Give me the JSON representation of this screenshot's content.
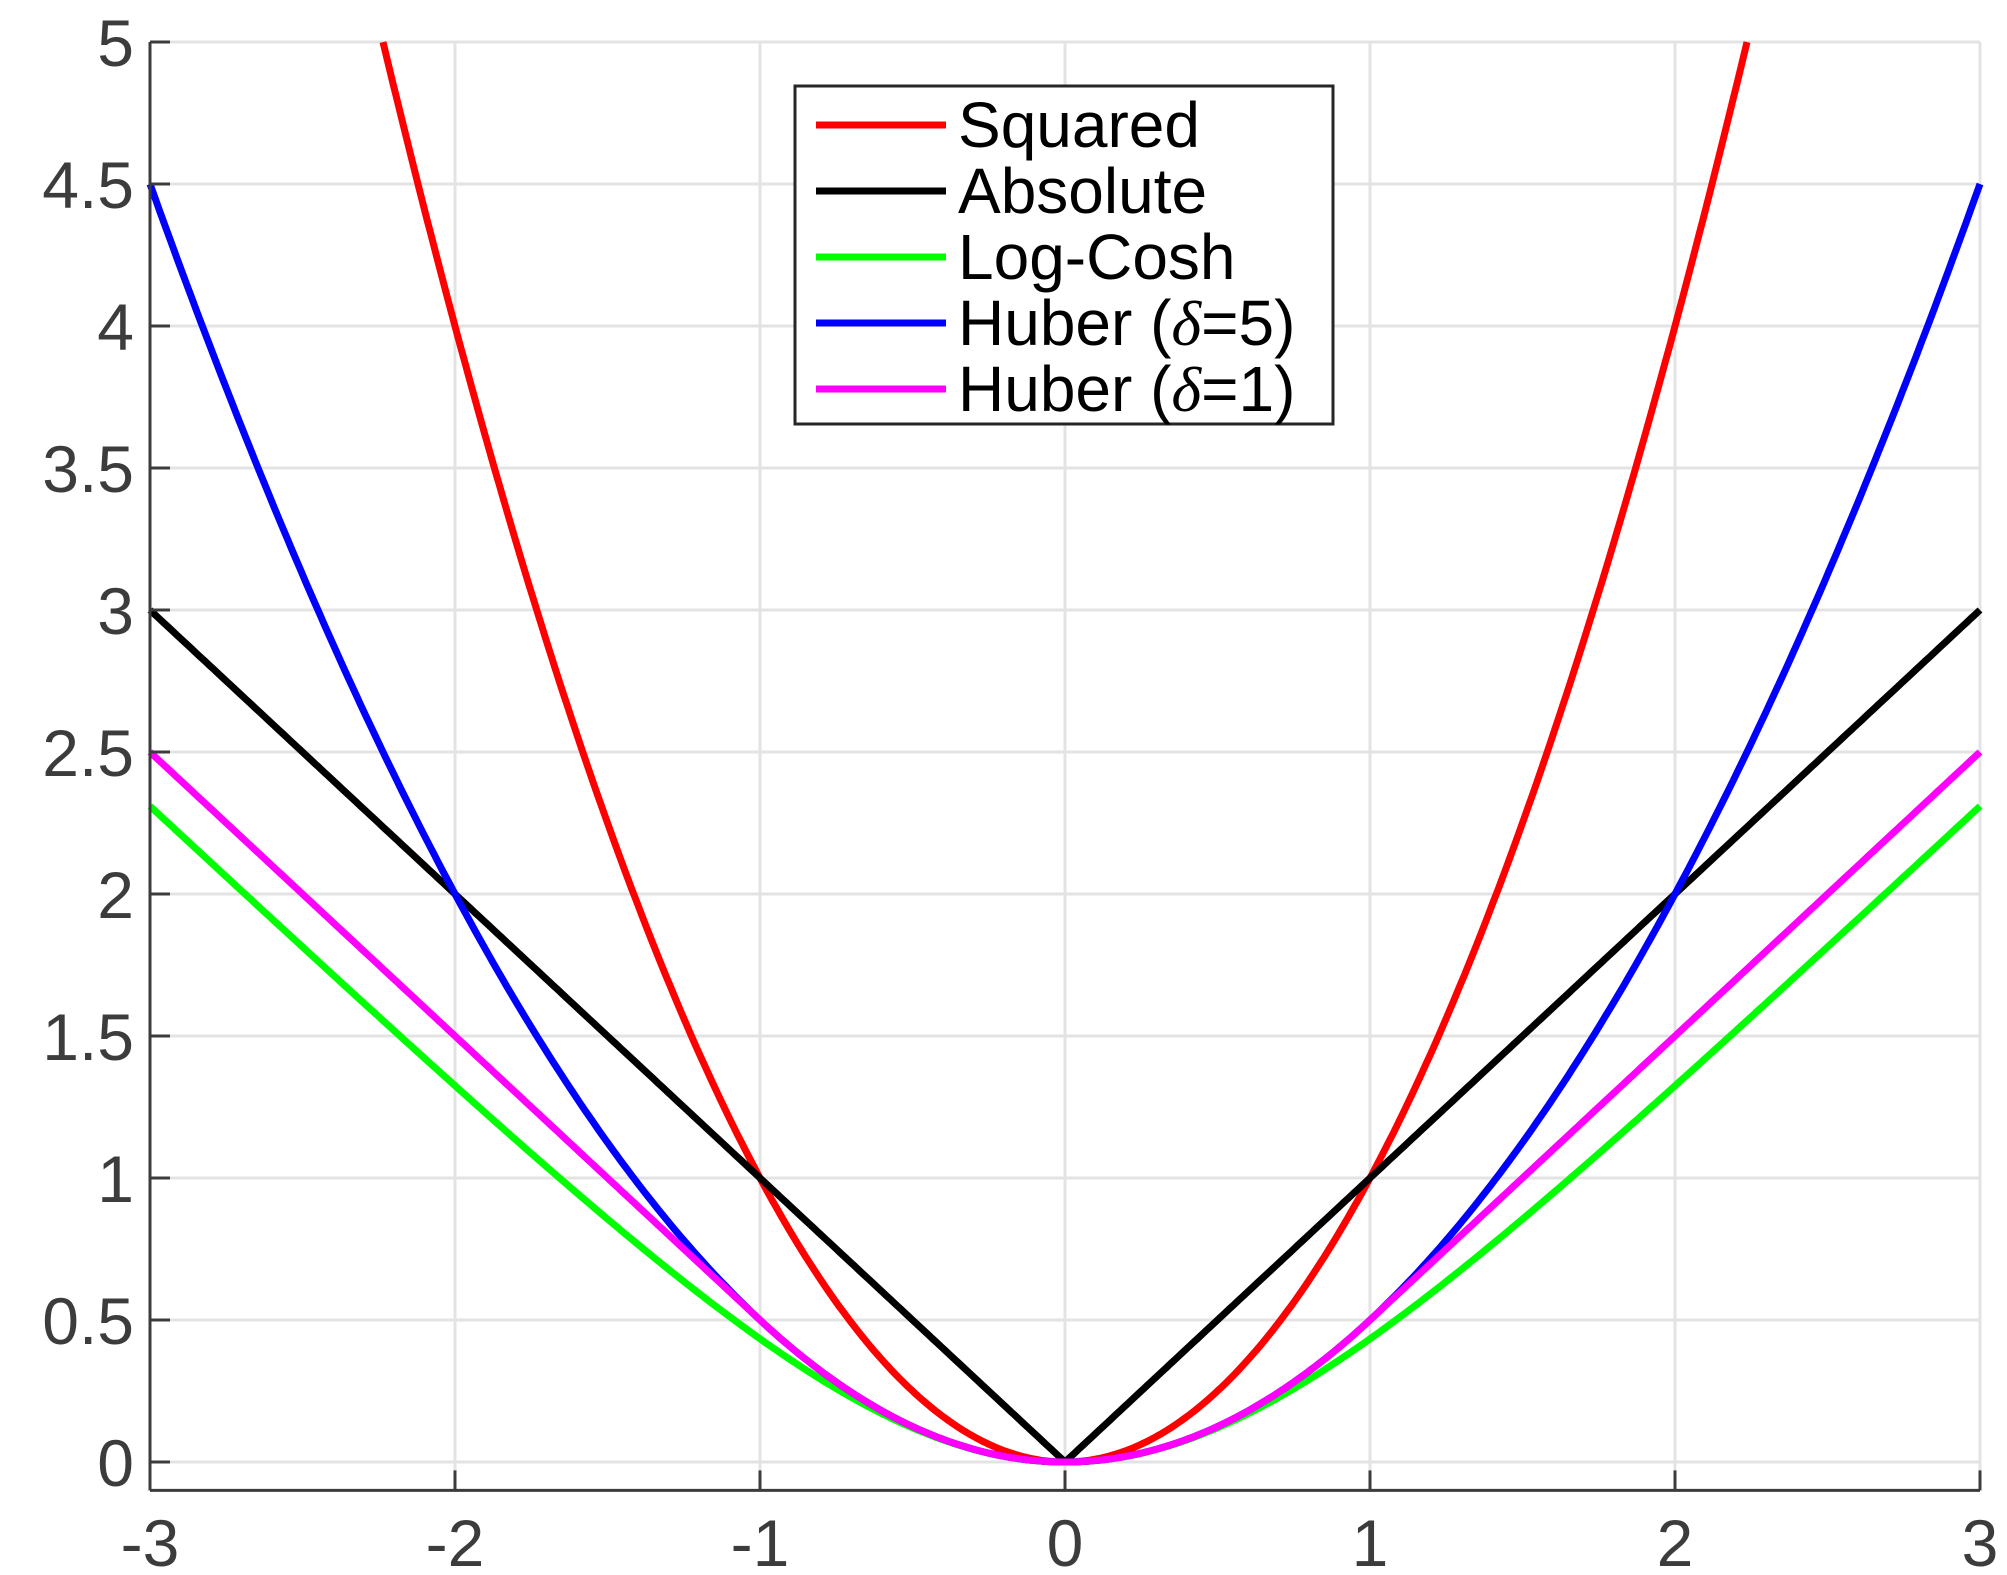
{
  "chart_data": {
    "type": "line",
    "title": "",
    "xlabel": "",
    "ylabel": "",
    "xlim": [
      -3,
      3
    ],
    "ylim": [
      -0.1,
      5
    ],
    "x_ticks": [
      -3,
      -2,
      -1,
      0,
      1,
      2,
      3
    ],
    "x_tick_labels": [
      "-3",
      "-2",
      "-1",
      "0",
      "1",
      "2",
      "3"
    ],
    "y_ticks": [
      0,
      0.5,
      1,
      1.5,
      2,
      2.5,
      3,
      3.5,
      4,
      4.5,
      5
    ],
    "y_tick_labels": [
      "0",
      "0.5",
      "1",
      "1.5",
      "2",
      "2.5",
      "3",
      "3.5",
      "4",
      "4.5",
      "5"
    ],
    "grid": true,
    "legend_position": "top-center",
    "series": [
      {
        "name": "Squared",
        "color": "#ff0000",
        "x": [
          -2.236,
          -2,
          -1.5,
          -1,
          -0.5,
          0,
          0.5,
          1,
          1.5,
          2,
          2.236
        ],
        "y": [
          5.0,
          4.0,
          2.25,
          1.0,
          0.25,
          0,
          0.25,
          1.0,
          2.25,
          4.0,
          5.0
        ]
      },
      {
        "name": "Absolute",
        "color": "#000000",
        "x": [
          -3,
          -2,
          -1,
          0,
          1,
          2,
          3
        ],
        "y": [
          3,
          2,
          1,
          0,
          1,
          2,
          3
        ]
      },
      {
        "name": "Log-Cosh",
        "color": "#00ff00",
        "x": [
          -3,
          -2.5,
          -2,
          -1.5,
          -1,
          -0.5,
          0,
          0.5,
          1,
          1.5,
          2,
          2.5,
          3
        ],
        "y": [
          2.31,
          1.81,
          1.33,
          0.86,
          0.43,
          0.12,
          0,
          0.12,
          0.43,
          0.86,
          1.33,
          1.81,
          2.31
        ]
      },
      {
        "name": "Huber (δ=5)",
        "legend_prefix": "Huber (",
        "legend_symbol": "δ",
        "legend_suffix": "=5)",
        "color": "#0000ff",
        "x": [
          -3,
          -2.5,
          -2,
          -1.5,
          -1,
          -0.5,
          0,
          0.5,
          1,
          1.5,
          2,
          2.5,
          3
        ],
        "y": [
          4.5,
          3.125,
          2.0,
          1.125,
          0.5,
          0.125,
          0,
          0.125,
          0.5,
          1.125,
          2.0,
          3.125,
          4.5
        ]
      },
      {
        "name": "Huber (δ=1)",
        "legend_prefix": "Huber (",
        "legend_symbol": "δ",
        "legend_suffix": "=1)",
        "color": "#ff00ff",
        "x": [
          -3,
          -2.5,
          -2,
          -1.5,
          -1,
          -0.5,
          0,
          0.5,
          1,
          1.5,
          2,
          2.5,
          3
        ],
        "y": [
          2.5,
          2.0,
          1.5,
          1.0,
          0.5,
          0.125,
          0,
          0.125,
          0.5,
          1.0,
          1.5,
          2.0,
          2.5
        ]
      }
    ]
  }
}
